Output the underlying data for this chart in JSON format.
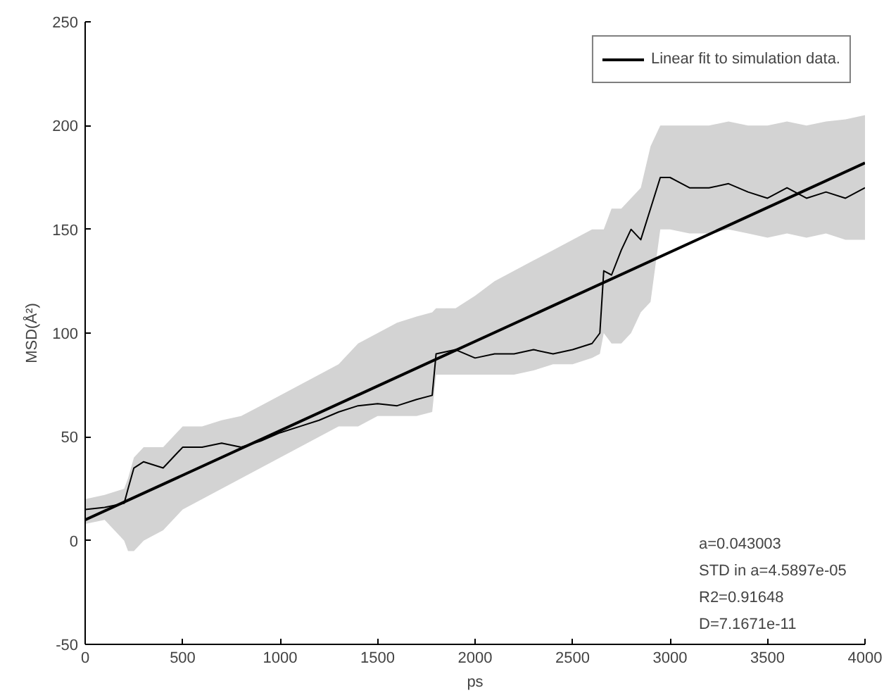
{
  "chart_data": {
    "type": "line",
    "xlabel": "ps",
    "ylabel": "MSD(Å²)",
    "xlim": [
      0,
      4000
    ],
    "ylim": [
      -50,
      250
    ],
    "xticks": [
      0,
      500,
      1000,
      1500,
      2000,
      2500,
      3000,
      3500,
      4000
    ],
    "yticks": [
      -50,
      0,
      50,
      100,
      150,
      200,
      250
    ],
    "grid": false,
    "legend": "top right",
    "marker": "none",
    "line_style": "solid",
    "annotations": [
      "a=0.043003",
      "STD in a=4.5897e-05",
      "R2=0.91648",
      "D=7.1671e-11"
    ],
    "series": [
      {
        "color": "#000000",
        "x": [
          0,
          100,
          200,
          220,
          250,
          300,
          400,
          450,
          500,
          600,
          700,
          800,
          900,
          1000,
          1100,
          1200,
          1300,
          1400,
          1500,
          1600,
          1700,
          1780,
          1800,
          1900,
          2000,
          2100,
          2200,
          2300,
          2400,
          2500,
          2600,
          2640,
          2660,
          2700,
          2750,
          2800,
          2850,
          2900,
          2950,
          3000,
          3100,
          3200,
          3300,
          3400,
          3500,
          3600,
          3700,
          3800,
          3900,
          4000
        ],
        "values": [
          15,
          16,
          18,
          25,
          35,
          38,
          35,
          40,
          45,
          45,
          47,
          45,
          48,
          52,
          55,
          58,
          62,
          65,
          66,
          65,
          68,
          70,
          90,
          92,
          88,
          90,
          90,
          92,
          90,
          92,
          95,
          100,
          130,
          128,
          140,
          150,
          145,
          160,
          175,
          175,
          170,
          170,
          172,
          168,
          165,
          170,
          165,
          168,
          165,
          170
        ],
        "lower": [
          8,
          10,
          0,
          -5,
          -5,
          0,
          5,
          10,
          15,
          20,
          25,
          30,
          35,
          40,
          45,
          50,
          55,
          55,
          60,
          60,
          60,
          62,
          80,
          80,
          80,
          80,
          80,
          82,
          85,
          85,
          88,
          90,
          100,
          95,
          95,
          100,
          110,
          115,
          150,
          150,
          148,
          148,
          150,
          148,
          146,
          148,
          146,
          148,
          145,
          145
        ],
        "upper": [
          20,
          22,
          25,
          30,
          40,
          45,
          45,
          50,
          55,
          55,
          58,
          60,
          65,
          70,
          75,
          80,
          85,
          95,
          100,
          105,
          108,
          110,
          112,
          112,
          118,
          125,
          130,
          135,
          140,
          145,
          150,
          150,
          150,
          160,
          160,
          165,
          170,
          190,
          200,
          200,
          200,
          200,
          202,
          200,
          200,
          202,
          200,
          202,
          203,
          205
        ]
      },
      {
        "name": "Linear fit to simulation data.",
        "color": "#000000",
        "x": [
          0,
          4000
        ],
        "values": [
          10,
          182
        ]
      }
    ]
  }
}
